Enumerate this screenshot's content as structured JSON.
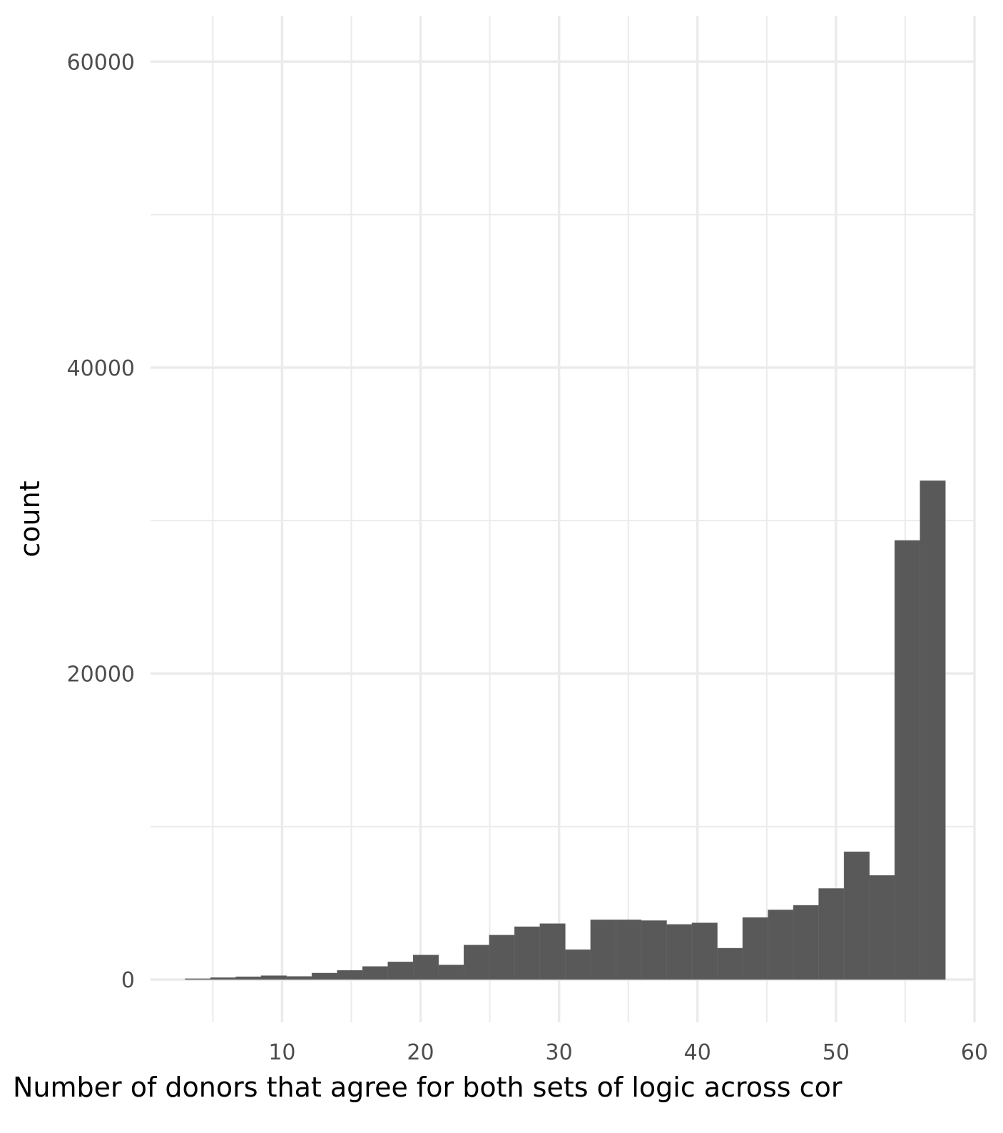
{
  "chart_data": {
    "type": "bar",
    "title": "",
    "xlabel": "Number of donors that agree for both sets of logic across cor",
    "ylabel": "count",
    "xlim": [
      0.5,
      60
    ],
    "ylim": [
      -2800,
      63000
    ],
    "x_ticks": [
      10,
      20,
      30,
      40,
      50,
      60
    ],
    "x_tick_labels": [
      "10",
      "20",
      "30",
      "40",
      "50",
      "60"
    ],
    "y_ticks": [
      0,
      20000,
      40000,
      60000
    ],
    "y_tick_labels": [
      "0",
      "20000",
      "40000",
      "60000"
    ],
    "grid": true,
    "legend": "none",
    "colors": {
      "bar": "#595959",
      "grid": "#ebebeb",
      "background": "#ffffff"
    },
    "bin_width": 1.83,
    "bins_left": [
      3.0,
      4.83,
      6.66,
      8.49,
      10.32,
      12.15,
      13.98,
      15.81,
      17.64,
      19.47,
      21.3,
      23.13,
      24.96,
      26.79,
      28.62,
      30.45,
      32.28,
      34.11,
      35.94,
      37.77,
      39.6,
      41.43,
      43.26,
      45.09,
      46.92,
      48.75,
      50.58,
      52.41,
      54.24,
      56.07
    ],
    "values": [
      50,
      120,
      180,
      250,
      200,
      420,
      600,
      850,
      1150,
      1600,
      950,
      2250,
      2900,
      3450,
      3650,
      1950,
      3900,
      3900,
      3850,
      3600,
      3700,
      2050,
      4050,
      4550,
      4850,
      5950,
      8350,
      6800,
      28700,
      32600
    ]
  }
}
